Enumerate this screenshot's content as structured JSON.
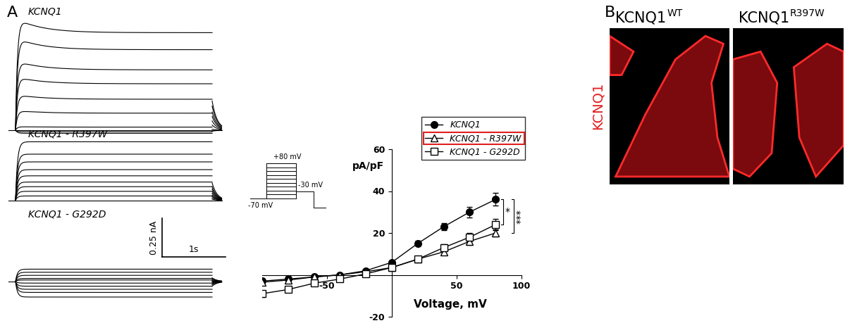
{
  "panel_labels": [
    "A",
    "B"
  ],
  "traces": {
    "scale_bar": {
      "current": 0.25,
      "current_label": "0.25 nA",
      "time": 1,
      "time_label": "1s"
    },
    "duration": 3.1,
    "panels": [
      {
        "label": "KCNQ1",
        "levels": [
          -0.02,
          -0.01,
          0.0,
          0.02,
          0.11,
          0.2,
          0.3,
          0.39,
          0.52,
          0.63
        ]
      },
      {
        "label": "KCNQ1 - R397W",
        "levels": [
          0.0,
          0.03,
          0.06,
          0.09,
          0.12,
          0.16,
          0.2,
          0.25,
          0.3,
          0.38
        ]
      },
      {
        "label": "KCNQ1 - G292D",
        "levels": [
          -0.1,
          -0.07,
          -0.05,
          -0.03,
          -0.01,
          0.01,
          0.02,
          0.04,
          0.06,
          0.08
        ]
      }
    ]
  },
  "protocol": {
    "top_label": "+80 mV",
    "hold_label": "-70 mV",
    "tail_label": "-30 mV"
  },
  "chart_data": {
    "type": "line",
    "x": [
      -100,
      -80,
      -60,
      -40,
      -20,
      0,
      20,
      40,
      60,
      80
    ],
    "xlim": [
      -100,
      100
    ],
    "xticks": [
      -50,
      50,
      100
    ],
    "ylim": [
      -20,
      60
    ],
    "yticks": [
      -20,
      20,
      40,
      60
    ],
    "x_label": "Voltage, mV",
    "y_label": "pA/pF",
    "legend": "upper right",
    "series": [
      {
        "name": "KCNQ1",
        "color": "#000000",
        "marker": "filled_circle",
        "line_style": "solid",
        "values": [
          -3,
          -2,
          -1,
          0,
          2,
          6,
          15,
          23,
          30,
          36
        ],
        "errors": [
          0.5,
          0.5,
          0.5,
          0.5,
          0.6,
          0.8,
          1.2,
          1.8,
          2.5,
          3.0
        ]
      },
      {
        "name": "KCNQ1 - R397W",
        "color": "#000000",
        "marker": "open_triangle",
        "line_style": "solid",
        "values": [
          -3.5,
          -2.5,
          -1,
          0,
          1.5,
          3.5,
          7.5,
          11,
          16,
          20
        ],
        "errors": [
          0.4,
          0.4,
          0.4,
          0.4,
          0.5,
          0.6,
          0.9,
          1.2,
          1.6,
          1.8
        ]
      },
      {
        "name": "KCNQ1 - G292D",
        "color": "#000000",
        "marker": "open_square",
        "line_style": "solid",
        "values": [
          -9,
          -7,
          -4,
          -2,
          0.5,
          3.5,
          7.5,
          13,
          18,
          24
        ],
        "errors": [
          1.5,
          1.2,
          0.9,
          0.6,
          0.5,
          0.6,
          1.0,
          1.5,
          2.0,
          2.8
        ]
      }
    ]
  },
  "legend_highlight": {
    "entry": "KCNQ1 - R397W",
    "color": "#e02020"
  },
  "significance": [
    {
      "series": [
        "KCNQ1",
        "KCNQ1 - G292D"
      ],
      "label": "*"
    },
    {
      "series": [
        "KCNQ1",
        "KCNQ1 - R397W"
      ],
      "label": "***"
    }
  ],
  "images": {
    "side_label": "KCNQ1",
    "panels": [
      {
        "base": "KCNQ1",
        "sup": "WT"
      },
      {
        "base": "KCNQ1",
        "sup": "R397W"
      }
    ]
  }
}
